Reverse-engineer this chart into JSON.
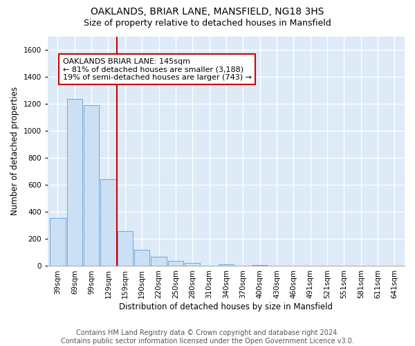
{
  "title": "OAKLANDS, BRIAR LANE, MANSFIELD, NG18 3HS",
  "subtitle": "Size of property relative to detached houses in Mansfield",
  "xlabel": "Distribution of detached houses by size in Mansfield",
  "ylabel": "Number of detached properties",
  "footer_line1": "Contains HM Land Registry data © Crown copyright and database right 2024.",
  "footer_line2": "Contains public sector information licensed under the Open Government Licence v3.0.",
  "bar_labels": [
    "39sqm",
    "69sqm",
    "99sqm",
    "129sqm",
    "159sqm",
    "190sqm",
    "220sqm",
    "250sqm",
    "280sqm",
    "310sqm",
    "340sqm",
    "370sqm",
    "400sqm",
    "430sqm",
    "460sqm",
    "491sqm",
    "521sqm",
    "551sqm",
    "581sqm",
    "611sqm",
    "641sqm"
  ],
  "bar_values": [
    355,
    1235,
    1190,
    645,
    260,
    120,
    70,
    40,
    22,
    0,
    12,
    0,
    10,
    0,
    0,
    0,
    0,
    0,
    0,
    0,
    0
  ],
  "ylim": [
    0,
    1700
  ],
  "yticks": [
    0,
    200,
    400,
    600,
    800,
    1000,
    1200,
    1400,
    1600
  ],
  "bar_color": "#cce0f5",
  "bar_edge_color": "#5b9bd5",
  "vline_x": 3.5,
  "vline_color": "#cc0000",
  "annotation_line1": "OAKLANDS BRIAR LANE: 145sqm",
  "annotation_line2": "← 81% of detached houses are smaller (3,188)",
  "annotation_line3": "19% of semi-detached houses are larger (743) →",
  "annotation_box_color": "#cc0000",
  "plot_bg_color": "#ddeaf7",
  "fig_bg_color": "#ffffff",
  "grid_color": "#ffffff",
  "title_fontsize": 10,
  "subtitle_fontsize": 9,
  "axis_label_fontsize": 8.5,
  "tick_fontsize": 7.5,
  "annotation_fontsize": 8,
  "footer_fontsize": 7
}
